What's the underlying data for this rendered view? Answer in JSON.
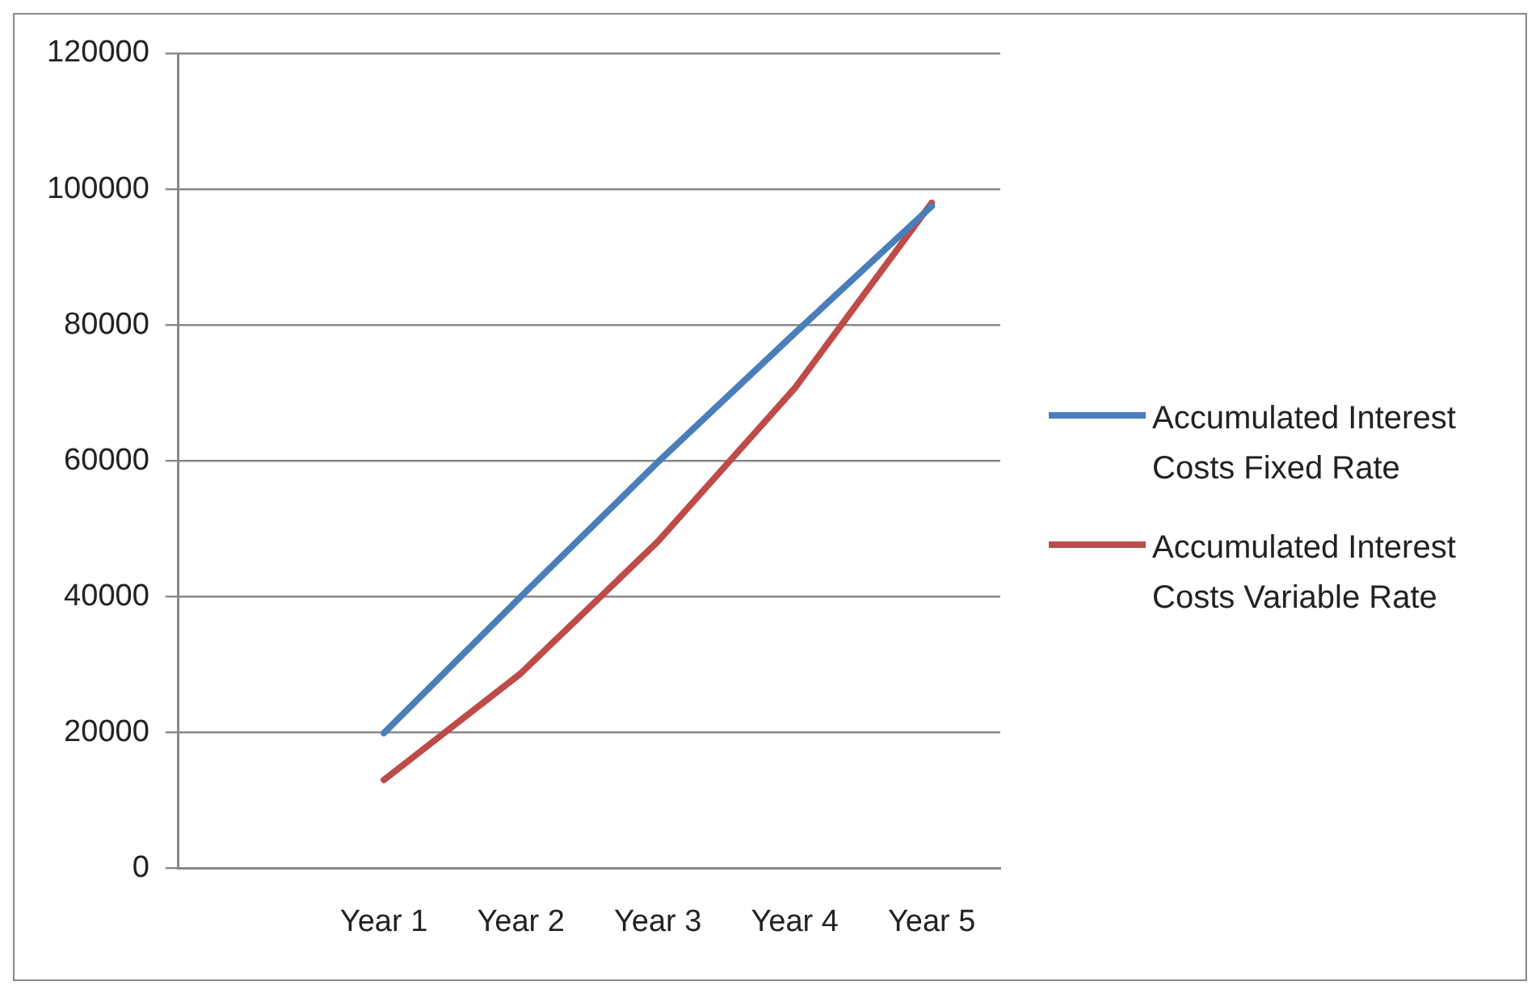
{
  "chart_data": {
    "type": "line",
    "categories": [
      null,
      "Year 1",
      "Year 2",
      "Year 3",
      "Year 4",
      "Year 5"
    ],
    "series": [
      {
        "name": "Accumulated Interest Costs Fixed Rate",
        "color": "#4a7ebb",
        "values": [
          null,
          19900,
          40000,
          59800,
          78800,
          97500
        ]
      },
      {
        "name": "Accumulated Interest Costs Variable Rate",
        "color": "#be4b48",
        "values": [
          null,
          13000,
          28700,
          48100,
          70700,
          98000
        ]
      }
    ],
    "ylim": [
      0,
      120000
    ],
    "yticks": [
      0,
      20000,
      40000,
      60000,
      80000,
      100000,
      120000
    ],
    "grid": "y",
    "legend": "right",
    "marker": "none"
  }
}
